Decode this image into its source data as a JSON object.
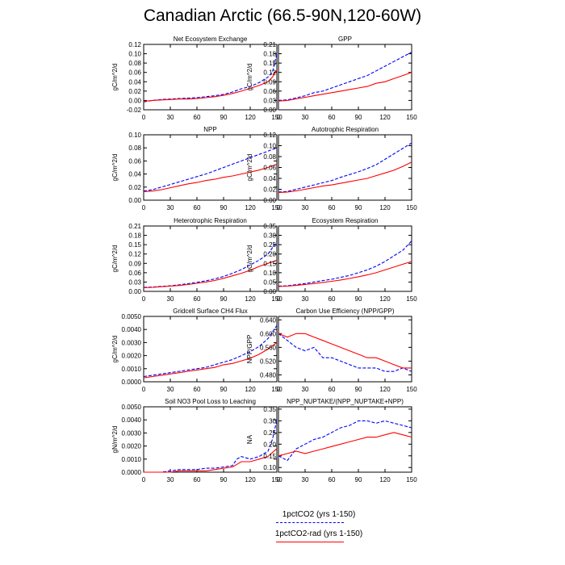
{
  "title": "Canadian Arctic (66.5-90N,120-60W)",
  "legend": [
    {
      "label": "1pctCO2 (yrs 1-150)",
      "color": "#0000ff",
      "dash": "dashed"
    },
    {
      "label": "1pctCO2-rad (yrs 1-150)",
      "color": "#ff0000",
      "dash": "solid"
    }
  ],
  "chart_data": [
    {
      "type": "line",
      "title": "Net Ecosystem Exchange",
      "ylabel": "gC/m^2/d",
      "xlim": [
        0,
        150
      ],
      "ylim": [
        -0.02,
        0.12
      ],
      "xticks": [
        "0",
        "30",
        "60",
        "90",
        "120",
        "150"
      ],
      "yticks": [
        "-0.02",
        "0.00",
        "0.02",
        "0.04",
        "0.06",
        "0.08",
        "0.10",
        "0.12"
      ],
      "x": [
        0,
        10,
        20,
        30,
        40,
        50,
        60,
        70,
        80,
        90,
        100,
        110,
        120,
        130,
        140,
        145,
        150
      ],
      "series": [
        {
          "color": "#0000ff",
          "dash": "dashed",
          "values": [
            -0.003,
            0.0,
            0.002,
            0.003,
            0.004,
            0.005,
            0.006,
            0.008,
            0.01,
            0.013,
            0.018,
            0.025,
            0.03,
            0.038,
            0.05,
            0.06,
            0.1
          ]
        },
        {
          "color": "#ff0000",
          "dash": "solid",
          "values": [
            -0.002,
            0.0,
            0.001,
            0.002,
            0.003,
            0.003,
            0.004,
            0.006,
            0.008,
            0.011,
            0.015,
            0.02,
            0.026,
            0.032,
            0.04,
            0.05,
            0.065
          ]
        }
      ]
    },
    {
      "type": "line",
      "title": "GPP",
      "ylabel": "gC/m^2/d",
      "xlim": [
        0,
        150
      ],
      "ylim": [
        0,
        0.21
      ],
      "xticks": [
        "0",
        "30",
        "60",
        "90",
        "120",
        "150"
      ],
      "yticks": [
        "0.00",
        "0.03",
        "0.06",
        "0.09",
        "0.12",
        "0.15",
        "0.18",
        "0.21"
      ],
      "x": [
        0,
        10,
        20,
        30,
        40,
        50,
        60,
        70,
        80,
        90,
        100,
        110,
        120,
        130,
        140,
        150
      ],
      "series": [
        {
          "color": "#0000ff",
          "dash": "dashed",
          "values": [
            0.03,
            0.032,
            0.038,
            0.045,
            0.055,
            0.06,
            0.07,
            0.08,
            0.09,
            0.1,
            0.11,
            0.125,
            0.14,
            0.155,
            0.17,
            0.185
          ]
        },
        {
          "color": "#ff0000",
          "dash": "solid",
          "values": [
            0.028,
            0.03,
            0.035,
            0.04,
            0.045,
            0.05,
            0.055,
            0.06,
            0.065,
            0.07,
            0.075,
            0.085,
            0.09,
            0.1,
            0.11,
            0.12
          ]
        }
      ]
    },
    {
      "type": "line",
      "title": "NPP",
      "ylabel": "gC/m^2/d",
      "xlim": [
        0,
        150
      ],
      "ylim": [
        0,
        0.1
      ],
      "xticks": [
        "0",
        "30",
        "60",
        "90",
        "120",
        "150"
      ],
      "yticks": [
        "0.00",
        "0.02",
        "0.04",
        "0.06",
        "0.08",
        "0.10"
      ],
      "x": [
        0,
        10,
        20,
        30,
        40,
        50,
        60,
        70,
        80,
        90,
        100,
        110,
        120,
        130,
        140,
        150
      ],
      "series": [
        {
          "color": "#0000ff",
          "dash": "dashed",
          "values": [
            0.014,
            0.016,
            0.02,
            0.024,
            0.028,
            0.032,
            0.036,
            0.04,
            0.045,
            0.05,
            0.055,
            0.06,
            0.065,
            0.07,
            0.075,
            0.08
          ]
        },
        {
          "color": "#ff0000",
          "dash": "solid",
          "values": [
            0.013,
            0.014,
            0.016,
            0.019,
            0.022,
            0.025,
            0.027,
            0.03,
            0.032,
            0.035,
            0.037,
            0.04,
            0.043,
            0.046,
            0.05,
            0.055
          ]
        }
      ]
    },
    {
      "type": "line",
      "title": "Autotrophic Respiration",
      "ylabel": "gC/m^2/d",
      "xlim": [
        0,
        150
      ],
      "ylim": [
        0,
        0.12
      ],
      "xticks": [
        "0",
        "30",
        "60",
        "90",
        "120",
        "150"
      ],
      "yticks": [
        "0.00",
        "0.02",
        "0.04",
        "0.06",
        "0.08",
        "0.10",
        "0.12"
      ],
      "x": [
        0,
        10,
        20,
        30,
        40,
        50,
        60,
        70,
        80,
        90,
        100,
        110,
        120,
        130,
        140,
        150
      ],
      "series": [
        {
          "color": "#0000ff",
          "dash": "dashed",
          "values": [
            0.015,
            0.016,
            0.02,
            0.024,
            0.028,
            0.032,
            0.036,
            0.042,
            0.047,
            0.052,
            0.058,
            0.065,
            0.075,
            0.085,
            0.095,
            0.105
          ]
        },
        {
          "color": "#ff0000",
          "dash": "solid",
          "values": [
            0.014,
            0.015,
            0.017,
            0.02,
            0.023,
            0.026,
            0.028,
            0.031,
            0.034,
            0.037,
            0.04,
            0.045,
            0.05,
            0.055,
            0.062,
            0.07
          ]
        }
      ]
    },
    {
      "type": "line",
      "title": "Heterotrophic Respiration",
      "ylabel": "gC/m^2/d",
      "xlim": [
        0,
        150
      ],
      "ylim": [
        0,
        0.21
      ],
      "xticks": [
        "0",
        "30",
        "60",
        "90",
        "120",
        "150"
      ],
      "yticks": [
        "0.00",
        "0.03",
        "0.06",
        "0.09",
        "0.12",
        "0.15",
        "0.18",
        "0.21"
      ],
      "x": [
        0,
        10,
        20,
        30,
        40,
        50,
        60,
        70,
        80,
        90,
        100,
        110,
        120,
        130,
        140,
        150
      ],
      "series": [
        {
          "color": "#0000ff",
          "dash": "dashed",
          "values": [
            0.013,
            0.014,
            0.016,
            0.018,
            0.021,
            0.025,
            0.029,
            0.034,
            0.04,
            0.048,
            0.058,
            0.07,
            0.085,
            0.1,
            0.12,
            0.16
          ]
        },
        {
          "color": "#ff0000",
          "dash": "solid",
          "values": [
            0.012,
            0.013,
            0.015,
            0.017,
            0.019,
            0.022,
            0.026,
            0.03,
            0.035,
            0.042,
            0.05,
            0.058,
            0.068,
            0.08,
            0.09,
            0.1
          ]
        }
      ]
    },
    {
      "type": "line",
      "title": "Ecosystem Respiration",
      "ylabel": "gC/m^2/d",
      "xlim": [
        0,
        150
      ],
      "ylim": [
        0,
        0.35
      ],
      "xticks": [
        "0",
        "30",
        "60",
        "90",
        "120",
        "150"
      ],
      "yticks": [
        "0.00",
        "0.05",
        "0.10",
        "0.15",
        "0.20",
        "0.25",
        "0.30",
        "0.35"
      ],
      "x": [
        0,
        10,
        20,
        30,
        40,
        50,
        60,
        70,
        80,
        90,
        100,
        110,
        120,
        130,
        140,
        150
      ],
      "series": [
        {
          "color": "#0000ff",
          "dash": "dashed",
          "values": [
            0.028,
            0.03,
            0.036,
            0.042,
            0.05,
            0.058,
            0.065,
            0.075,
            0.085,
            0.1,
            0.115,
            0.135,
            0.16,
            0.19,
            0.22,
            0.27
          ]
        },
        {
          "color": "#ff0000",
          "dash": "solid",
          "values": [
            0.026,
            0.028,
            0.032,
            0.037,
            0.042,
            0.048,
            0.054,
            0.061,
            0.069,
            0.078,
            0.088,
            0.1,
            0.115,
            0.13,
            0.145,
            0.16
          ]
        }
      ]
    },
    {
      "type": "line",
      "title": "Gridcell Surface CH4 Flux",
      "ylabel": "gC/m^2/d",
      "xlim": [
        0,
        150
      ],
      "ylim": [
        0,
        0.005
      ],
      "xticks": [
        "0",
        "30",
        "60",
        "90",
        "120",
        "150"
      ],
      "yticks": [
        "0.0000",
        "0.0010",
        "0.0020",
        "0.0030",
        "0.0040",
        "0.0050"
      ],
      "x": [
        0,
        10,
        20,
        30,
        40,
        50,
        60,
        70,
        80,
        90,
        100,
        110,
        120,
        130,
        140,
        150
      ],
      "series": [
        {
          "color": "#0000ff",
          "dash": "dashed",
          "values": [
            0.0004,
            0.0005,
            0.0006,
            0.0007,
            0.0008,
            0.0009,
            0.001,
            0.0011,
            0.0013,
            0.0015,
            0.0017,
            0.002,
            0.0023,
            0.0027,
            0.0033,
            0.0043
          ]
        },
        {
          "color": "#ff0000",
          "dash": "solid",
          "values": [
            0.0003,
            0.0004,
            0.0005,
            0.0006,
            0.0007,
            0.0008,
            0.0009,
            0.001,
            0.0011,
            0.0013,
            0.0014,
            0.0016,
            0.0018,
            0.0021,
            0.0025,
            0.003
          ]
        }
      ]
    },
    {
      "type": "line",
      "title": "Carbon Use Efficiency (NPP/GPP)",
      "ylabel": "NPP/GPP",
      "xlim": [
        0,
        150
      ],
      "ylim": [
        0.46,
        0.65
      ],
      "xticks": [
        "0",
        "30",
        "60",
        "90",
        "120",
        "150"
      ],
      "yticks": [
        "0.480",
        "0.520",
        "0.560",
        "0.600",
        "0.640"
      ],
      "x": [
        0,
        10,
        20,
        30,
        40,
        50,
        60,
        70,
        80,
        90,
        100,
        110,
        120,
        130,
        140,
        150
      ],
      "series": [
        {
          "color": "#0000ff",
          "dash": "dashed",
          "values": [
            0.6,
            0.58,
            0.56,
            0.55,
            0.56,
            0.53,
            0.53,
            0.52,
            0.51,
            0.5,
            0.5,
            0.5,
            0.49,
            0.49,
            0.5,
            0.49
          ]
        },
        {
          "color": "#ff0000",
          "dash": "solid",
          "values": [
            0.6,
            0.59,
            0.6,
            0.6,
            0.59,
            0.58,
            0.57,
            0.56,
            0.55,
            0.54,
            0.53,
            0.53,
            0.52,
            0.51,
            0.5,
            0.5
          ]
        }
      ]
    },
    {
      "type": "line",
      "title": "Soil NO3 Pool Loss to Leaching",
      "ylabel": "gN/m^2/d",
      "xlim": [
        0,
        150
      ],
      "ylim": [
        0,
        0.005
      ],
      "xticks": [
        "0",
        "30",
        "60",
        "90",
        "120",
        "150"
      ],
      "yticks": [
        "0.0000",
        "0.0010",
        "0.0020",
        "0.0030",
        "0.0040",
        "0.0050"
      ],
      "x": [
        0,
        10,
        20,
        30,
        40,
        50,
        60,
        70,
        80,
        90,
        100,
        105,
        110,
        120,
        130,
        140,
        145,
        150
      ],
      "series": [
        {
          "color": "#0000ff",
          "dash": "dashed",
          "values": [
            0.0,
            0.0,
            0.0,
            0.0001,
            0.0002,
            0.0002,
            0.0002,
            0.0003,
            0.0003,
            0.0004,
            0.0005,
            0.001,
            0.0012,
            0.001,
            0.0012,
            0.0016,
            0.0025,
            0.004
          ]
        },
        {
          "color": "#ff0000",
          "dash": "solid",
          "values": [
            0.0,
            0.0,
            0.0,
            0.0,
            0.0001,
            0.0001,
            0.0001,
            0.0001,
            0.0002,
            0.0003,
            0.0004,
            0.0006,
            0.0008,
            0.0008,
            0.001,
            0.0012,
            0.0015,
            0.0018
          ]
        }
      ]
    },
    {
      "type": "line",
      "title": "NPP_NUPTAKE/(NPP_NUPTAKE+NPP)",
      "ylabel": "NA",
      "xlim": [
        0,
        150
      ],
      "ylim": [
        0.08,
        0.36
      ],
      "xticks": [
        "0",
        "30",
        "60",
        "90",
        "120",
        "150"
      ],
      "yticks": [
        "0.10",
        "0.15",
        "0.20",
        "0.25",
        "0.30",
        "0.35"
      ],
      "x": [
        0,
        10,
        20,
        30,
        40,
        50,
        60,
        70,
        80,
        90,
        100,
        110,
        120,
        130,
        140,
        150
      ],
      "series": [
        {
          "color": "#0000ff",
          "dash": "dashed",
          "values": [
            0.15,
            0.13,
            0.18,
            0.2,
            0.22,
            0.23,
            0.25,
            0.27,
            0.28,
            0.3,
            0.3,
            0.29,
            0.3,
            0.29,
            0.28,
            0.27
          ]
        },
        {
          "color": "#ff0000",
          "dash": "solid",
          "values": [
            0.15,
            0.16,
            0.17,
            0.16,
            0.17,
            0.18,
            0.19,
            0.2,
            0.21,
            0.22,
            0.23,
            0.23,
            0.24,
            0.25,
            0.24,
            0.23
          ]
        }
      ]
    }
  ]
}
